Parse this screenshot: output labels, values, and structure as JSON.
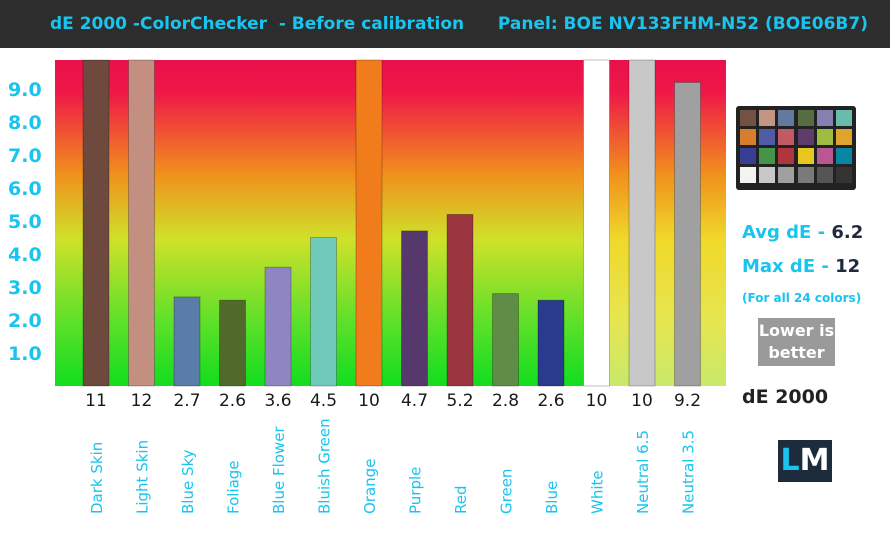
{
  "header": {
    "title": "dE 2000 -ColorChecker  - Before calibration",
    "panel": "Panel: BOE NV133FHM-N52 (BOE06B7)"
  },
  "summary": {
    "avg_label": "Avg dE - ",
    "avg_value": "6.2",
    "max_label": "Max dE - ",
    "max_value": "12",
    "note": "(For all 24 colors)",
    "lower_line1": "Lower is",
    "lower_line2": "better",
    "unit": "dE 2000",
    "logo_l": "L",
    "logo_m": "M"
  },
  "colors": {
    "accent": "#19c4ee",
    "header_bg": "#2d2d2d"
  },
  "chart_data": {
    "type": "bar",
    "title": "dE 2000 -ColorChecker  - Before calibration",
    "xlabel": "",
    "ylabel": "",
    "ylim": [
      0,
      10
    ],
    "yticks": [
      "1.0",
      "2.0",
      "3.0",
      "4.0",
      "5.0",
      "6.0",
      "7.0",
      "8.0",
      "9.0"
    ],
    "categories": [
      "Dark Skin",
      "Light Skin",
      "Blue Sky",
      "Foliage",
      "Blue Flower",
      "Bluish Green",
      "Orange",
      "Purple",
      "Red",
      "Green",
      "Blue",
      "White",
      "Neutral 6.5",
      "Neutral 3.5"
    ],
    "values": [
      11,
      12,
      2.7,
      2.6,
      3.6,
      4.5,
      10,
      4.7,
      5.2,
      2.8,
      2.6,
      10,
      10,
      9.2
    ],
    "value_labels": [
      "11",
      "12",
      "2.7",
      "2.6",
      "3.6",
      "4.5",
      "10",
      "4.7",
      "5.2",
      "2.8",
      "2.6",
      "10",
      "10",
      "9.2"
    ],
    "bar_colors": [
      "#6e4a3e",
      "#c28f80",
      "#5a7ca8",
      "#4f6a2a",
      "#8f85c0",
      "#6fcab9",
      "#f07c1c",
      "#56386c",
      "#9a3540",
      "#5f8c46",
      "#2a3a8c",
      "#ffffff",
      "#c8c8c8",
      "#a0a0a0"
    ],
    "grid": false,
    "legend": "none"
  },
  "checker_colors": [
    "#735244",
    "#c29682",
    "#627a9d",
    "#576c43",
    "#8580b1",
    "#67bdaa",
    "#d67e2c",
    "#505ba6",
    "#c15a63",
    "#5e3c6c",
    "#9dbc40",
    "#e0a32e",
    "#383d96",
    "#469449",
    "#af363c",
    "#e7c71f",
    "#bb5695",
    "#0885a1",
    "#f3f3f2",
    "#c8c8c8",
    "#a0a0a0",
    "#7a7a79",
    "#555555",
    "#343434"
  ]
}
